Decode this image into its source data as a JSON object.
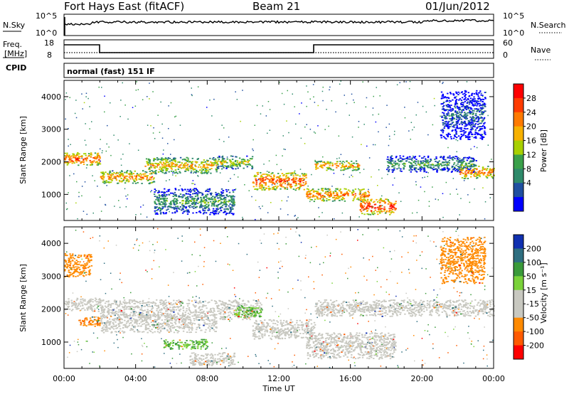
{
  "header": {
    "title": "Fort Hays East (fitACF)",
    "beam": "Beam 21",
    "date": "01/Jun/2012"
  },
  "noise_panel": {
    "left_label": "N.Sky",
    "right_label": "N.Search",
    "left_ticks": [
      "10^5",
      "10^0"
    ],
    "right_ticks": [
      "10^5",
      "10^0"
    ]
  },
  "freq_panel": {
    "left_label_top": "Freq.",
    "left_label_bottom": "[MHz]",
    "right_label": "Nave",
    "left_ticks": [
      "18",
      "8"
    ],
    "right_ticks": [
      "60",
      "0"
    ]
  },
  "cpid_panel": {
    "label": "CPID",
    "text": "normal (fast) 151 IF"
  },
  "power_colorbar": {
    "label": "Power [dB]",
    "ticks": [
      "28",
      "24",
      "20",
      "16",
      "12",
      "8",
      "4"
    ],
    "colors": [
      "#ff0000",
      "#ff3b00",
      "#ff7a00",
      "#f7b100",
      "#a8d000",
      "#3aa04a",
      "#2e8a6a",
      "#1f4fa0",
      "#0000ff"
    ]
  },
  "velocity_colorbar": {
    "label": "Velocity [m s⁻¹]",
    "ticks": [
      "200",
      "100",
      "50",
      "15",
      "-15",
      "-50",
      "-100",
      "-200"
    ],
    "colors": [
      "#1030b0",
      "#2e6e80",
      "#3a9a3a",
      "#7ad23a",
      "#c8c8c0",
      "#c8c8c0",
      "#ff8a00",
      "#ff5a00",
      "#ff0000"
    ]
  },
  "chart_data": [
    {
      "type": "heatmap",
      "name": "Power panel",
      "ylabel": "Slant Range [km]",
      "yticks": [
        1000,
        2000,
        3000,
        4000
      ],
      "xticks": [
        "00:00",
        "04:00",
        "08:00",
        "12:00",
        "16:00",
        "20:00",
        "00:00"
      ],
      "x_range_hours": [
        0,
        24
      ],
      "ylim": [
        200,
        4500
      ],
      "colorbar": "Power [dB]",
      "bands": [
        {
          "t": [
            0.0,
            2.0
          ],
          "r": [
            1900,
            2300
          ],
          "level": 28
        },
        {
          "t": [
            2.0,
            5.0
          ],
          "r": [
            1350,
            1750
          ],
          "level": 24
        },
        {
          "t": [
            4.5,
            8.5
          ],
          "r": [
            1650,
            2150
          ],
          "level": 22
        },
        {
          "t": [
            8.5,
            10.5
          ],
          "r": [
            1800,
            2200
          ],
          "level": 18
        },
        {
          "t": [
            10.5,
            13.5
          ],
          "r": [
            1150,
            1700
          ],
          "level": 28
        },
        {
          "t": [
            13.5,
            17.0
          ],
          "r": [
            800,
            1200
          ],
          "level": 26
        },
        {
          "t": [
            14.0,
            16.5
          ],
          "r": [
            1750,
            2050
          ],
          "level": 24
        },
        {
          "t": [
            16.5,
            18.5
          ],
          "r": [
            400,
            900
          ],
          "level": 30
        },
        {
          "t": [
            18.0,
            23.0
          ],
          "r": [
            1700,
            2200
          ],
          "level": 12
        },
        {
          "t": [
            22.0,
            24.0
          ],
          "r": [
            1500,
            1900
          ],
          "level": 26
        },
        {
          "t": [
            21.0,
            23.5
          ],
          "r": [
            2700,
            4200
          ],
          "level": 6
        },
        {
          "t": [
            5.0,
            9.5
          ],
          "r": [
            400,
            1200
          ],
          "level": 12
        }
      ]
    },
    {
      "type": "heatmap",
      "name": "Velocity panel",
      "ylabel": "Slant Range [km]",
      "yticks": [
        1000,
        2000,
        3000,
        4000
      ],
      "xticks": [
        "00:00",
        "04:00",
        "08:00",
        "12:00",
        "16:00",
        "20:00",
        "00:00"
      ],
      "xlabel": "Time UT",
      "x_range_hours": [
        0,
        24
      ],
      "ylim": [
        200,
        4500
      ],
      "colorbar": "Velocity [m s⁻¹]",
      "bands": [
        {
          "t": [
            0.0,
            2.0
          ],
          "r": [
            1950,
            2350
          ],
          "level": 0
        },
        {
          "t": [
            0.8,
            2.0
          ],
          "r": [
            1500,
            1800
          ],
          "level": -70
        },
        {
          "t": [
            2.0,
            8.5
          ],
          "r": [
            1300,
            2300
          ],
          "level": 0
        },
        {
          "t": [
            8.5,
            11.0
          ],
          "r": [
            1700,
            2300
          ],
          "level": 0
        },
        {
          "t": [
            9.5,
            11.0
          ],
          "r": [
            1750,
            2100
          ],
          "level": 30
        },
        {
          "t": [
            10.5,
            14.0
          ],
          "r": [
            1100,
            1700
          ],
          "level": 0
        },
        {
          "t": [
            14.0,
            24.0
          ],
          "r": [
            1800,
            2300
          ],
          "level": 0
        },
        {
          "t": [
            13.5,
            18.5
          ],
          "r": [
            500,
            1300
          ],
          "level": 0
        },
        {
          "t": [
            5.5,
            8.0
          ],
          "r": [
            800,
            1100
          ],
          "level": 30
        },
        {
          "t": [
            7.0,
            9.5
          ],
          "r": [
            300,
            700
          ],
          "level": 0
        },
        {
          "t": [
            21.0,
            23.5
          ],
          "r": [
            2800,
            4200
          ],
          "level": -50
        },
        {
          "t": [
            0.0,
            1.5
          ],
          "r": [
            3000,
            3700
          ],
          "level": -50
        }
      ]
    }
  ]
}
